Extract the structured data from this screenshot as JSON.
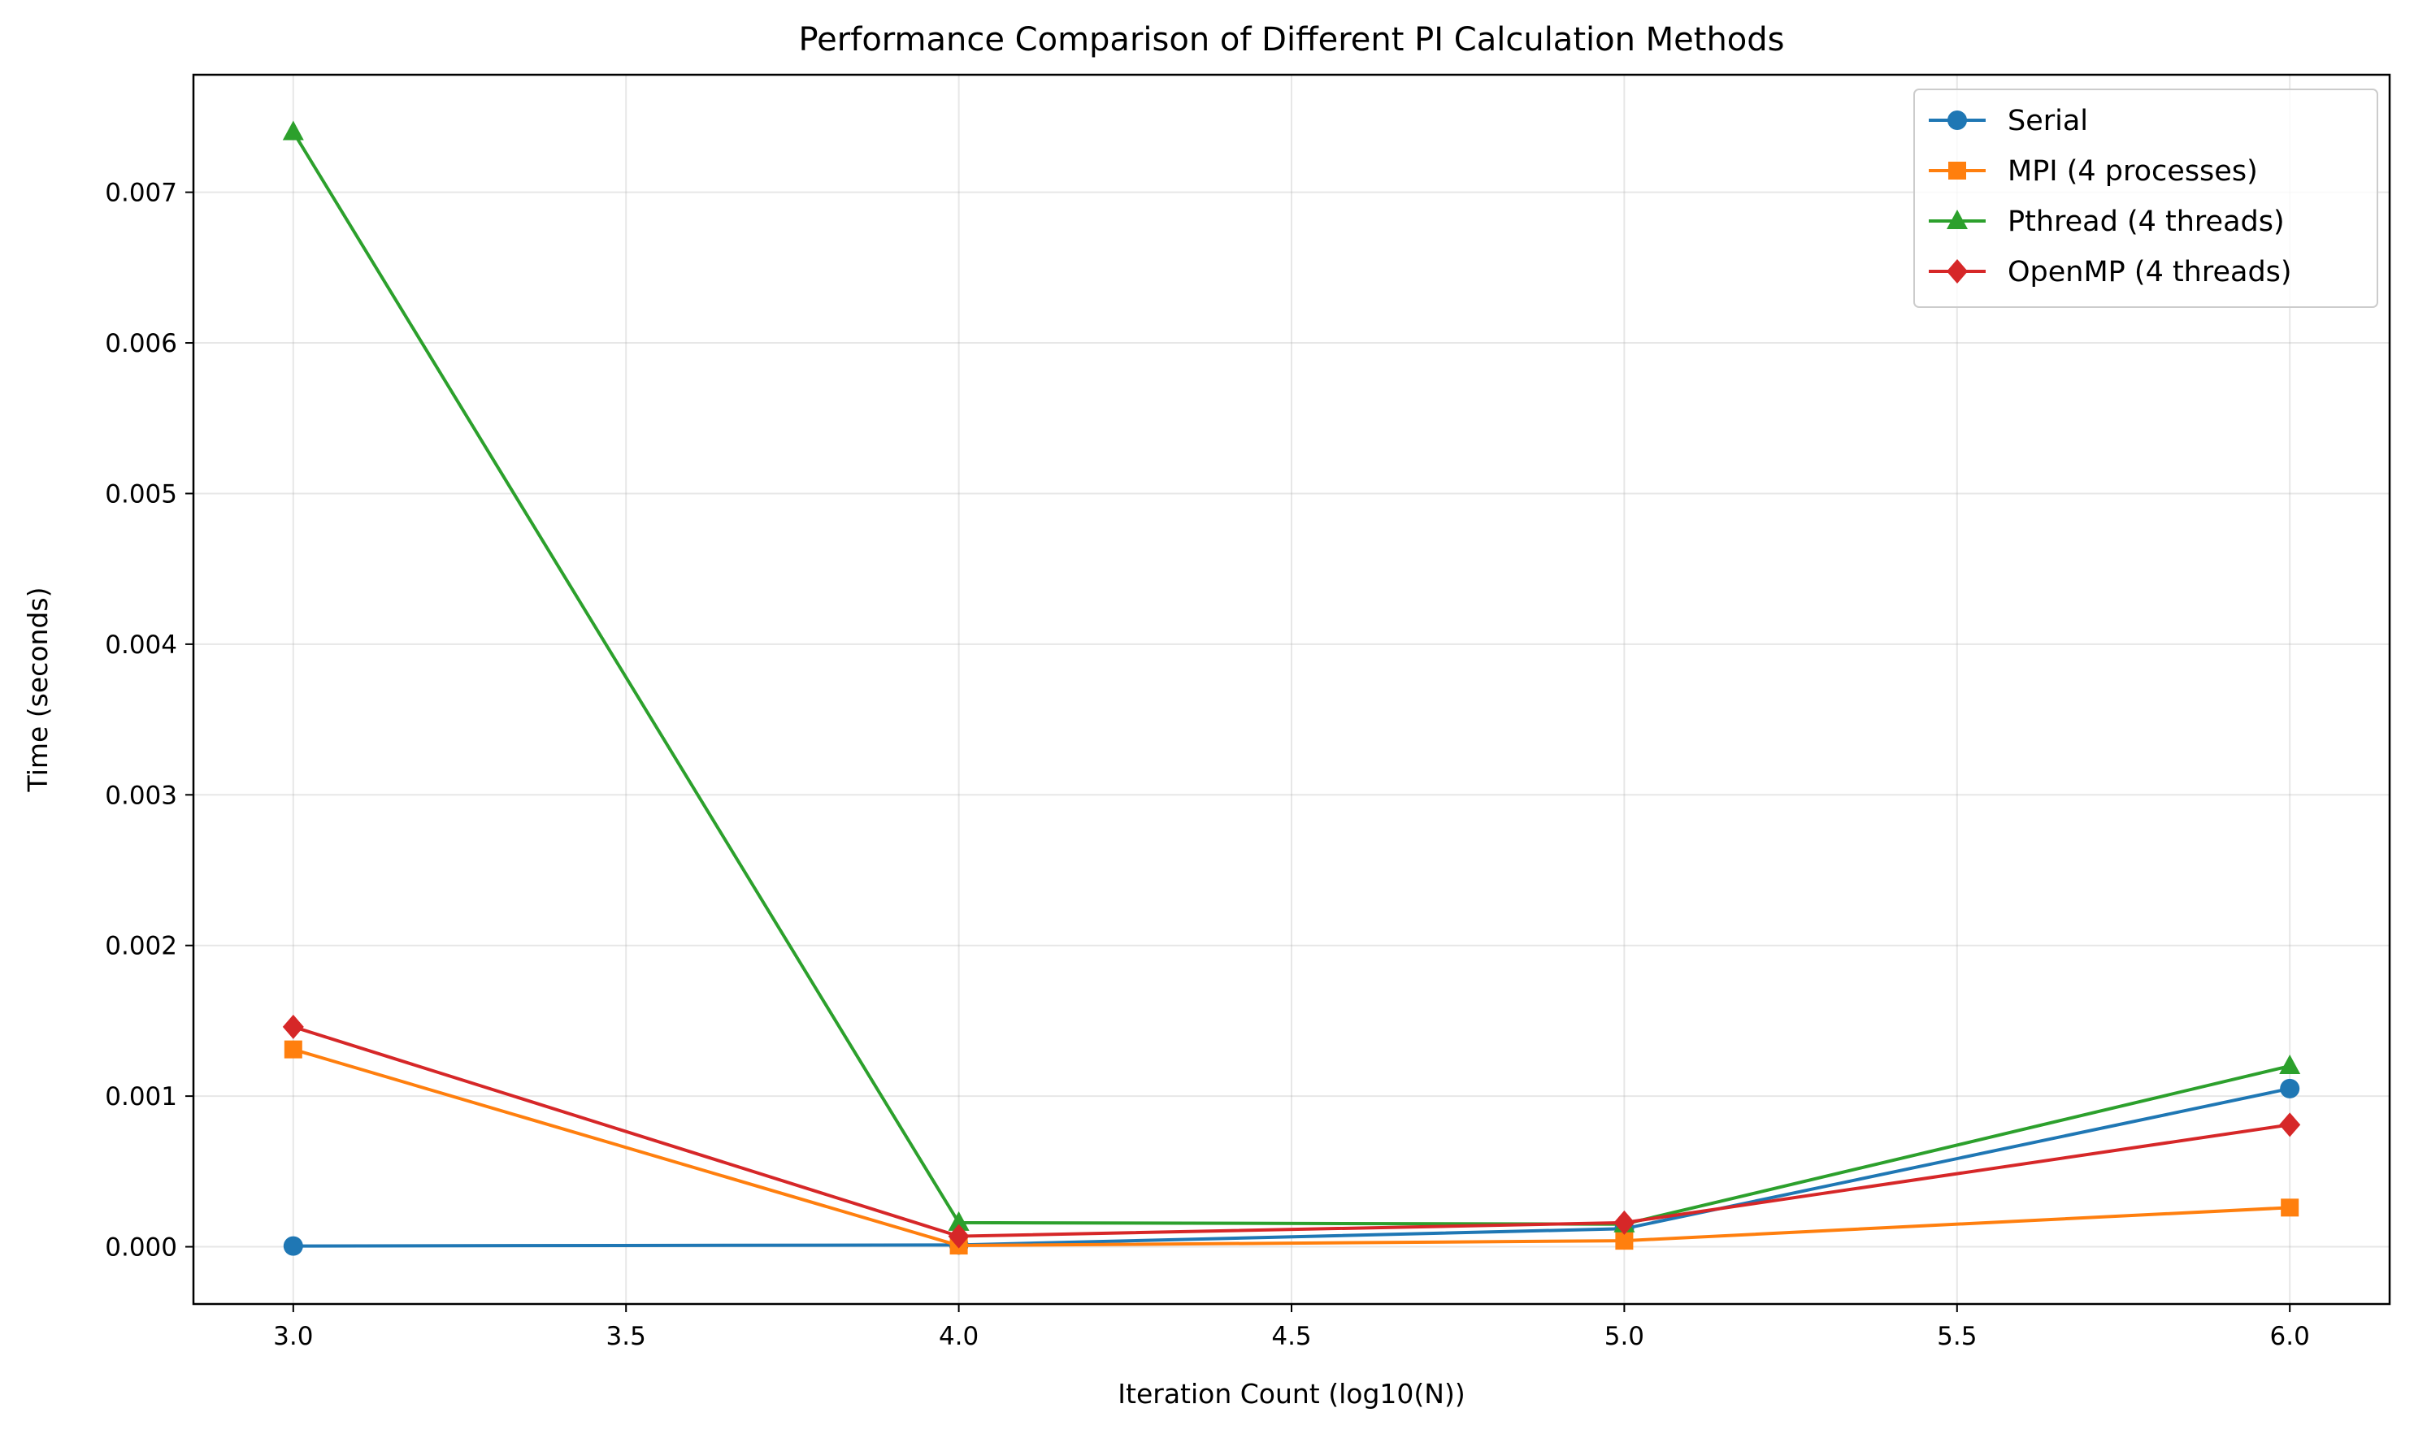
{
  "chart_data": {
    "type": "line",
    "title": "Performance Comparison of Different PI Calculation Methods",
    "xlabel": "Iteration Count (log10(N))",
    "ylabel": "Time (seconds)",
    "xlim": [
      2.85,
      6.15
    ],
    "ylim": [
      -0.00038,
      0.00778
    ],
    "xticks": [
      3.0,
      3.5,
      4.0,
      4.5,
      5.0,
      5.5,
      6.0
    ],
    "xtick_labels": [
      "3.0",
      "3.5",
      "4.0",
      "4.5",
      "5.0",
      "5.5",
      "6.0"
    ],
    "yticks": [
      0,
      0.001,
      0.002,
      0.003,
      0.004,
      0.005,
      0.006,
      0.007
    ],
    "ytick_labels": [
      "0.000",
      "0.001",
      "0.002",
      "0.003",
      "0.004",
      "0.005",
      "0.006",
      "0.007"
    ],
    "grid": true,
    "legend_position": "top-right",
    "x": [
      3.0,
      4.0,
      5.0,
      6.0
    ],
    "series": [
      {
        "name": "Serial",
        "marker": "circle",
        "color": "#1f77b4",
        "values": [
          5e-06,
          1.2e-05,
          0.00012,
          0.00105
        ]
      },
      {
        "name": "MPI (4 processes)",
        "marker": "square",
        "color": "#ff7f0e",
        "values": [
          0.00131,
          8e-06,
          4e-05,
          0.00026
        ]
      },
      {
        "name": "Pthread (4 threads)",
        "marker": "triangle",
        "color": "#2ca02c",
        "values": [
          0.0074,
          0.00016,
          0.00015,
          0.0012
        ]
      },
      {
        "name": "OpenMP (4 threads)",
        "marker": "diamond",
        "color": "#d62728",
        "values": [
          0.00146,
          7e-05,
          0.00016,
          0.00081
        ]
      }
    ]
  }
}
